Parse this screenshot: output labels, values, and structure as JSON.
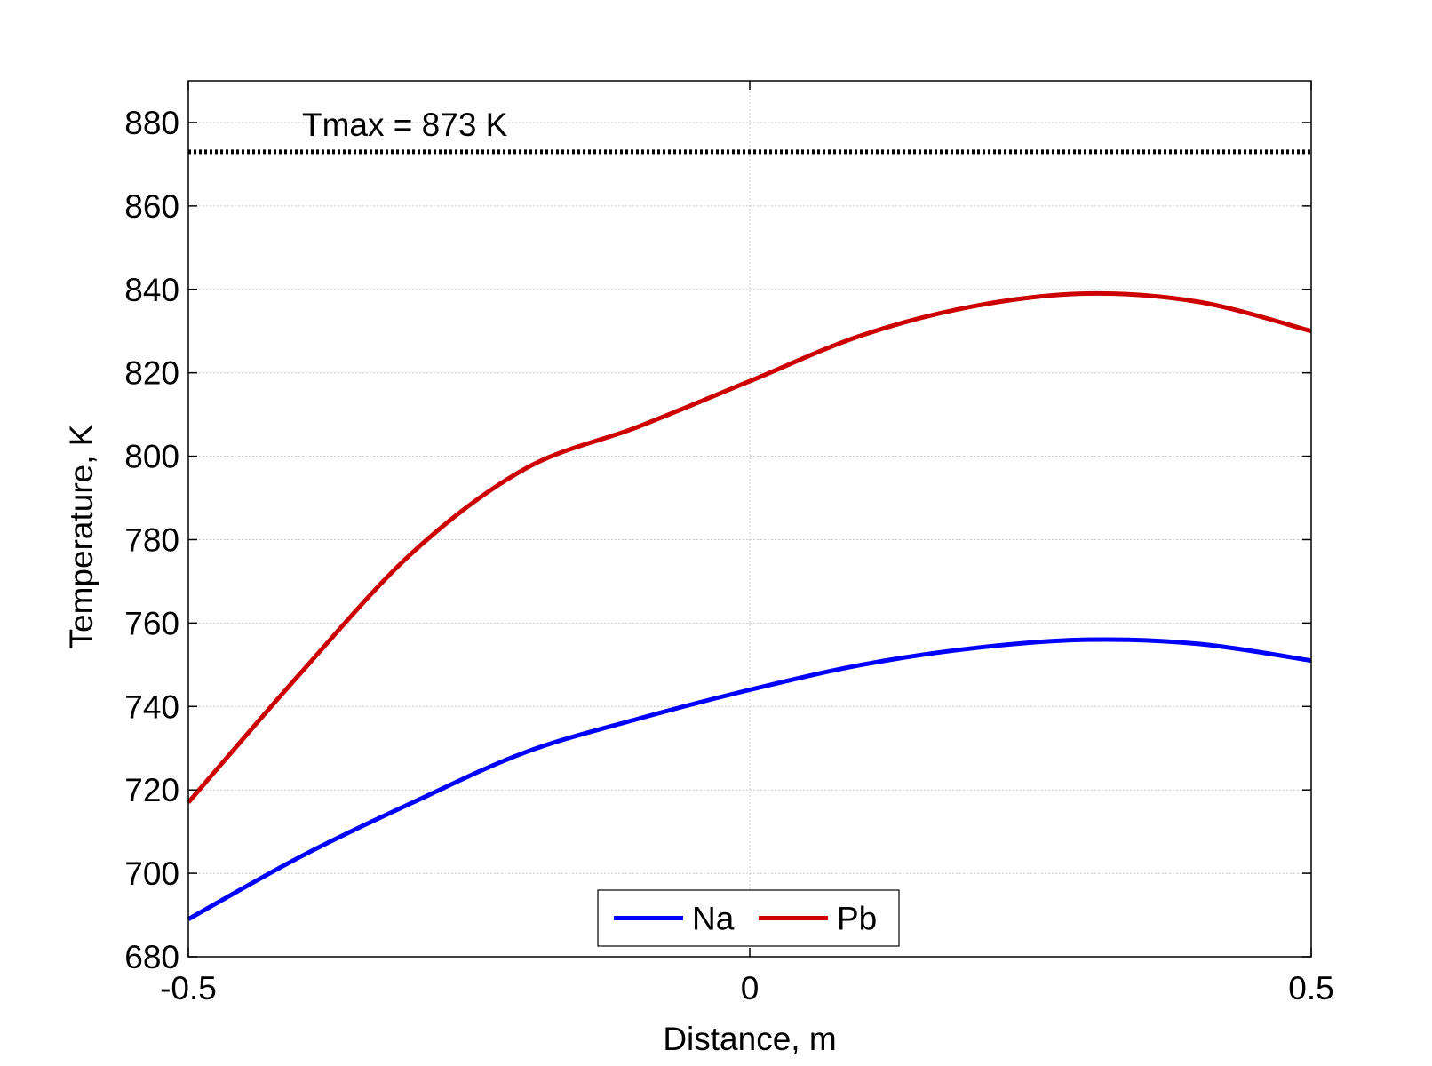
{
  "chart_data": {
    "type": "line",
    "title": "",
    "xlabel": "Distance, m",
    "ylabel": "Temperature, K",
    "xlim": [
      -0.5,
      0.5
    ],
    "ylim": [
      680,
      890
    ],
    "xticks": [
      -0.5,
      0,
      0.5
    ],
    "xtick_labels": [
      "-0.5",
      "0",
      "0.5"
    ],
    "yticks": [
      680,
      700,
      720,
      740,
      760,
      780,
      800,
      820,
      840,
      860,
      880
    ],
    "ytick_labels": [
      "680",
      "700",
      "720",
      "740",
      "760",
      "780",
      "800",
      "820",
      "840",
      "860",
      "880"
    ],
    "grid": true,
    "legend_placement": "bottom-center",
    "series": [
      {
        "name": "Na",
        "color": "#0000ff",
        "x": [
          -0.5,
          -0.4,
          -0.3,
          -0.2,
          -0.1,
          0.0,
          0.1,
          0.2,
          0.3,
          0.4,
          0.5
        ],
        "y": [
          689,
          704,
          717,
          729,
          737,
          744,
          750,
          754,
          756,
          755,
          751
        ]
      },
      {
        "name": "Pb",
        "color": "#cc0000",
        "x": [
          -0.5,
          -0.4,
          -0.3,
          -0.2,
          -0.1,
          0.0,
          0.1,
          0.2,
          0.3,
          0.4,
          0.5
        ],
        "y": [
          717,
          748,
          777,
          797,
          807,
          818,
          829,
          836,
          839,
          837,
          830
        ]
      }
    ],
    "reference_line": {
      "y": 873,
      "label": "Tmax = 873 K",
      "color": "#000000",
      "style": "dotted"
    }
  }
}
